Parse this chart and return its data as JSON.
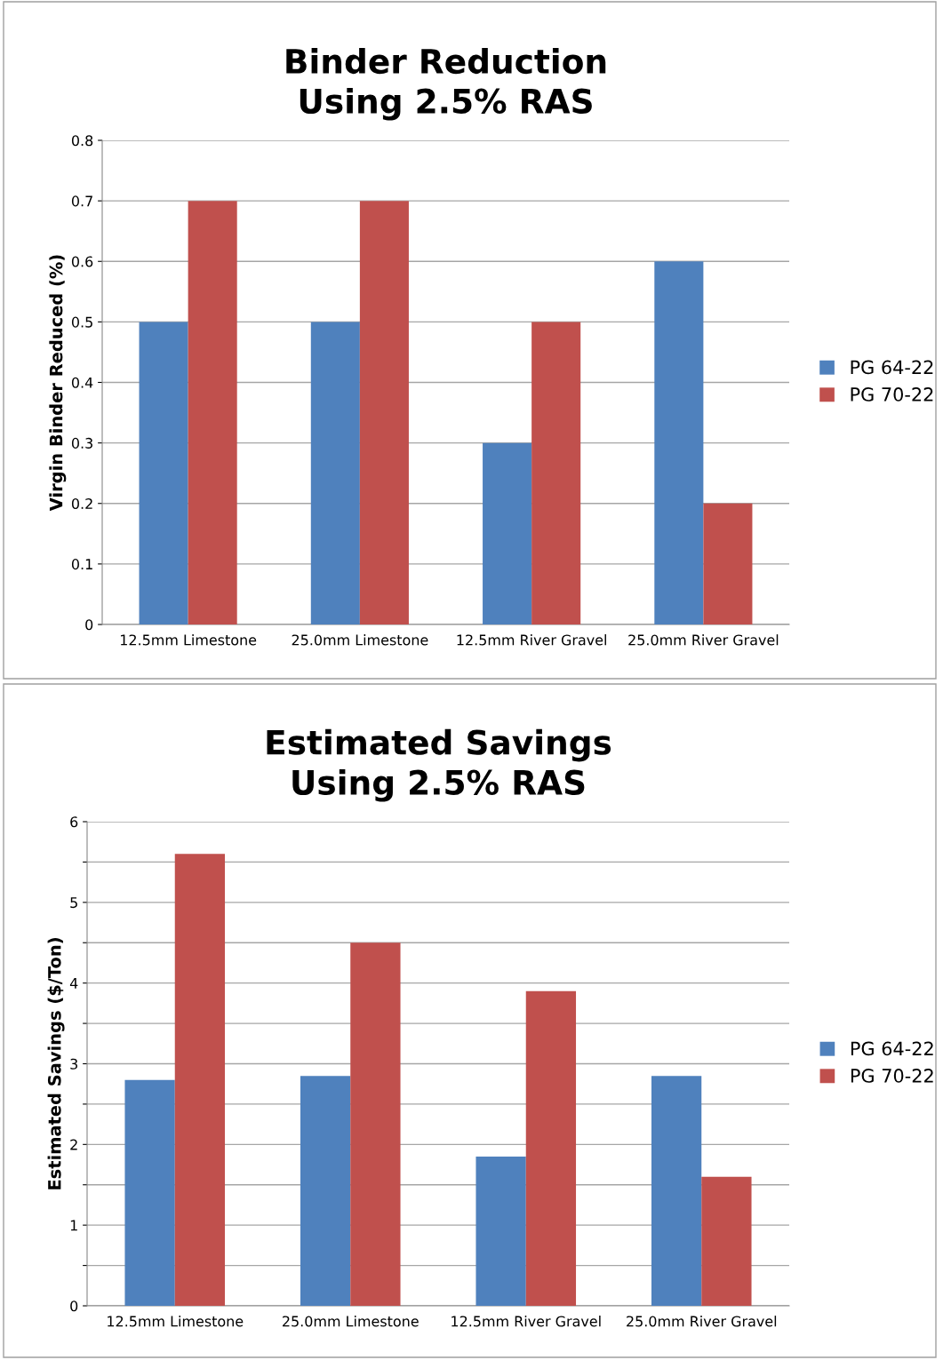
{
  "chart_data": [
    {
      "type": "bar",
      "title": "Binder Reduction\nUsing 2.5% RAS",
      "ylabel": "Virgin Binder Reduced (%)",
      "categories": [
        "12.5mm Limestone",
        "25.0mm Limestone",
        "12.5mm River Gravel",
        "25.0mm River Gravel"
      ],
      "series": [
        {
          "name": "PG 64-22",
          "color": "#4f81bd",
          "values": [
            0.5,
            0.5,
            0.3,
            0.6
          ]
        },
        {
          "name": "PG 70-22",
          "color": "#c0504d",
          "values": [
            0.7,
            0.7,
            0.5,
            0.2
          ]
        }
      ],
      "ylim": [
        0,
        0.8
      ],
      "yticks": [
        {
          "value": 0,
          "label": "0"
        },
        0.1,
        0.2,
        0.3,
        0.4,
        0.5,
        0.6,
        0.7,
        0.8
      ],
      "grid": "y",
      "legend": "right"
    },
    {
      "type": "bar",
      "title": "Estimated Savings\nUsing 2.5% RAS",
      "ylabel": "Estimated Savings ($/Ton)",
      "categories": [
        "12.5mm Limestone",
        "25.0mm Limestone",
        "12.5mm River Gravel",
        "25.0mm River Gravel"
      ],
      "series": [
        {
          "name": "PG 64-22",
          "color": "#4f81bd",
          "values": [
            2.8,
            2.85,
            1.85,
            2.85
          ]
        },
        {
          "name": "PG 70-22",
          "color": "#c0504d",
          "values": [
            5.6,
            4.5,
            3.9,
            1.6
          ]
        }
      ],
      "ylim": [
        0,
        6
      ],
      "yticks": [
        0,
        {
          "value": 0.5,
          "label": null
        },
        1,
        {
          "value": 1.5,
          "label": null
        },
        2,
        {
          "value": 2.5,
          "label": null
        },
        3,
        {
          "value": 3.5,
          "label": null
        },
        4,
        {
          "value": 4.5,
          "label": null
        },
        5,
        {
          "value": 5.5,
          "label": null
        },
        6
      ],
      "grid": "y",
      "legend": "right"
    }
  ]
}
